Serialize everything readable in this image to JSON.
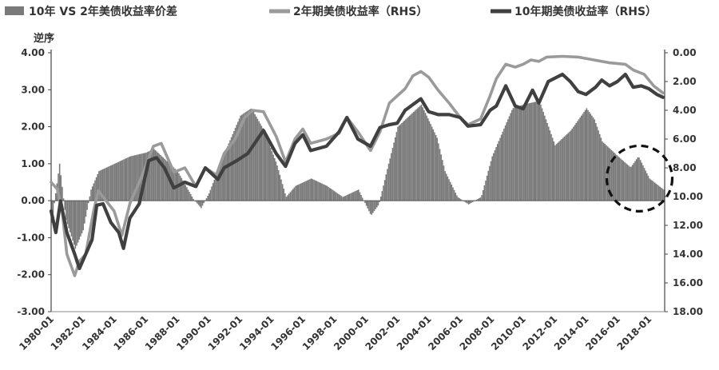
{
  "chart_data": {
    "type": "bar+line",
    "legend": [
      {
        "name": "10年 VS 2年美债收益率价差",
        "kind": "bar",
        "color": "#7a7a7a"
      },
      {
        "name": "2年期美债收益率（RHS）",
        "kind": "line",
        "color": "#9a9a9a"
      },
      {
        "name": "10年期美债收益率（RHS）",
        "kind": "line",
        "color": "#404040"
      }
    ],
    "left_axis": {
      "ylim": [
        -3,
        4
      ],
      "ticks": [
        "4.00",
        "3.00",
        "2.00",
        "1.00",
        "0.00",
        "-1.00",
        "-2.00",
        "-3.00"
      ]
    },
    "right_axis": {
      "label": "逆序",
      "reversed": true,
      "ylim": [
        0,
        18
      ],
      "ticks": [
        "0.00",
        "2.00",
        "4.00",
        "6.00",
        "8.00",
        "10.00",
        "12.00",
        "14.00",
        "16.00",
        "18.00"
      ]
    },
    "x_ticks": [
      "1980-01",
      "1982-01",
      "1984-01",
      "1986-01",
      "1988-01",
      "1990-01",
      "1992-01",
      "1994-01",
      "1996-01",
      "1998-01",
      "2000-01",
      "2002-01",
      "2004-01",
      "2006-01",
      "2008-01",
      "2010-01",
      "2012-01",
      "2014-01",
      "2016-01",
      "2018-01"
    ],
    "x_range": [
      "1980-01",
      "2018-12"
    ],
    "series": [
      {
        "name": "10年 VS 2年美债收益率价差",
        "type": "bar",
        "points": [
          [
            1980.0,
            -0.6
          ],
          [
            1980.5,
            1.0
          ],
          [
            1980.9,
            -0.5
          ],
          [
            1981.5,
            -1.3
          ],
          [
            1982.0,
            -0.8
          ],
          [
            1982.5,
            0.3
          ],
          [
            1983.0,
            0.8
          ],
          [
            1984.0,
            1.0
          ],
          [
            1985.0,
            1.2
          ],
          [
            1986.0,
            1.3
          ],
          [
            1986.5,
            1.4
          ],
          [
            1987.0,
            1.2
          ],
          [
            1988.0,
            0.8
          ],
          [
            1989.0,
            0.05
          ],
          [
            1989.5,
            -0.2
          ],
          [
            1990.0,
            0.2
          ],
          [
            1991.0,
            1.3
          ],
          [
            1992.0,
            2.3
          ],
          [
            1992.7,
            2.5
          ],
          [
            1993.5,
            1.9
          ],
          [
            1994.3,
            1.0
          ],
          [
            1994.9,
            0.1
          ],
          [
            1995.5,
            0.4
          ],
          [
            1996.5,
            0.6
          ],
          [
            1997.5,
            0.4
          ],
          [
            1998.5,
            0.1
          ],
          [
            1999.5,
            0.3
          ],
          [
            2000.3,
            -0.4
          ],
          [
            2000.8,
            -0.1
          ],
          [
            2001.3,
            0.8
          ],
          [
            2002.0,
            2.0
          ],
          [
            2003.0,
            2.4
          ],
          [
            2003.5,
            2.6
          ],
          [
            2004.5,
            1.7
          ],
          [
            2005.0,
            0.8
          ],
          [
            2005.8,
            0.1
          ],
          [
            2006.5,
            -0.1
          ],
          [
            2007.3,
            0.1
          ],
          [
            2008.0,
            1.2
          ],
          [
            2008.6,
            1.8
          ],
          [
            2009.3,
            2.5
          ],
          [
            2010.0,
            2.6
          ],
          [
            2011.0,
            2.7
          ],
          [
            2012.0,
            1.5
          ],
          [
            2013.0,
            1.9
          ],
          [
            2014.0,
            2.5
          ],
          [
            2014.5,
            2.2
          ],
          [
            2015.0,
            1.6
          ],
          [
            2016.0,
            1.2
          ],
          [
            2016.8,
            0.9
          ],
          [
            2017.3,
            1.2
          ],
          [
            2018.0,
            0.6
          ],
          [
            2018.9,
            0.3
          ]
        ]
      },
      {
        "name": "2年期美债收益率（RHS）",
        "type": "line",
        "points": [
          [
            1980.0,
            9.0
          ],
          [
            1980.4,
            9.5
          ],
          [
            1980.7,
            11.0
          ],
          [
            1981.0,
            14.0
          ],
          [
            1981.5,
            15.5
          ],
          [
            1981.8,
            14.5
          ],
          [
            1982.2,
            14.0
          ],
          [
            1982.7,
            11.0
          ],
          [
            1983.0,
            9.6
          ],
          [
            1983.5,
            10.3
          ],
          [
            1984.0,
            11.0
          ],
          [
            1984.5,
            12.7
          ],
          [
            1985.0,
            10.5
          ],
          [
            1985.8,
            8.5
          ],
          [
            1986.5,
            6.5
          ],
          [
            1987.0,
            6.3
          ],
          [
            1987.8,
            8.3
          ],
          [
            1988.5,
            8.0
          ],
          [
            1989.2,
            9.3
          ],
          [
            1989.8,
            8.0
          ],
          [
            1990.5,
            8.5
          ],
          [
            1991.0,
            7.0
          ],
          [
            1991.7,
            6.0
          ],
          [
            1992.3,
            4.5
          ],
          [
            1992.8,
            4.0
          ],
          [
            1993.5,
            4.1
          ],
          [
            1994.3,
            5.8
          ],
          [
            1994.9,
            7.6
          ],
          [
            1995.5,
            6.0
          ],
          [
            1996.0,
            5.3
          ],
          [
            1996.5,
            6.3
          ],
          [
            1997.5,
            6.0
          ],
          [
            1998.3,
            5.6
          ],
          [
            1998.8,
            4.5
          ],
          [
            1999.5,
            5.5
          ],
          [
            2000.3,
            6.8
          ],
          [
            2000.9,
            5.5
          ],
          [
            2001.5,
            3.5
          ],
          [
            2002.0,
            3.0
          ],
          [
            2002.5,
            2.5
          ],
          [
            2003.0,
            1.6
          ],
          [
            2003.5,
            1.3
          ],
          [
            2004.0,
            1.7
          ],
          [
            2004.6,
            2.6
          ],
          [
            2005.3,
            3.5
          ],
          [
            2006.0,
            4.5
          ],
          [
            2006.5,
            5.0
          ],
          [
            2007.3,
            4.6
          ],
          [
            2007.9,
            3.0
          ],
          [
            2008.3,
            1.8
          ],
          [
            2008.9,
            0.8
          ],
          [
            2009.5,
            1.0
          ],
          [
            2010.0,
            0.8
          ],
          [
            2010.5,
            0.5
          ],
          [
            2011.0,
            0.6
          ],
          [
            2011.5,
            0.3
          ],
          [
            2012.5,
            0.25
          ],
          [
            2013.5,
            0.3
          ],
          [
            2014.5,
            0.5
          ],
          [
            2015.5,
            0.7
          ],
          [
            2016.5,
            0.8
          ],
          [
            2017.0,
            1.2
          ],
          [
            2017.7,
            1.5
          ],
          [
            2018.3,
            2.3
          ],
          [
            2018.9,
            2.8
          ]
        ]
      },
      {
        "name": "10年期美债收益率（RHS）",
        "type": "line",
        "points": [
          [
            1980.0,
            11.0
          ],
          [
            1980.3,
            12.5
          ],
          [
            1980.6,
            10.3
          ],
          [
            1981.0,
            12.5
          ],
          [
            1981.5,
            14.0
          ],
          [
            1981.8,
            15.0
          ],
          [
            1982.2,
            14.0
          ],
          [
            1982.6,
            13.0
          ],
          [
            1982.9,
            10.6
          ],
          [
            1983.3,
            10.5
          ],
          [
            1983.8,
            11.8
          ],
          [
            1984.3,
            12.5
          ],
          [
            1984.6,
            13.6
          ],
          [
            1985.0,
            11.5
          ],
          [
            1985.6,
            10.5
          ],
          [
            1986.2,
            7.5
          ],
          [
            1986.7,
            7.3
          ],
          [
            1987.2,
            8.0
          ],
          [
            1987.8,
            9.4
          ],
          [
            1988.5,
            9.0
          ],
          [
            1989.2,
            9.3
          ],
          [
            1989.8,
            8.0
          ],
          [
            1990.6,
            8.8
          ],
          [
            1991.0,
            8.0
          ],
          [
            1991.8,
            7.5
          ],
          [
            1992.5,
            7.0
          ],
          [
            1993.5,
            5.4
          ],
          [
            1994.3,
            7.0
          ],
          [
            1994.9,
            7.9
          ],
          [
            1995.5,
            6.3
          ],
          [
            1996.0,
            5.7
          ],
          [
            1996.5,
            6.8
          ],
          [
            1997.5,
            6.5
          ],
          [
            1998.3,
            5.5
          ],
          [
            1998.8,
            4.5
          ],
          [
            1999.5,
            6.0
          ],
          [
            2000.3,
            6.5
          ],
          [
            2000.9,
            5.2
          ],
          [
            2001.5,
            5.0
          ],
          [
            2002.0,
            4.9
          ],
          [
            2002.5,
            4.0
          ],
          [
            2003.0,
            3.6
          ],
          [
            2003.5,
            3.2
          ],
          [
            2004.0,
            4.1
          ],
          [
            2004.6,
            4.3
          ],
          [
            2005.3,
            4.3
          ],
          [
            2006.0,
            4.5
          ],
          [
            2006.5,
            5.1
          ],
          [
            2007.3,
            5.0
          ],
          [
            2007.9,
            4.0
          ],
          [
            2008.3,
            3.7
          ],
          [
            2008.9,
            2.3
          ],
          [
            2009.5,
            3.7
          ],
          [
            2010.0,
            3.9
          ],
          [
            2010.6,
            2.6
          ],
          [
            2011.0,
            3.5
          ],
          [
            2011.6,
            2.0
          ],
          [
            2012.5,
            1.5
          ],
          [
            2013.0,
            2.0
          ],
          [
            2013.5,
            2.7
          ],
          [
            2014.0,
            2.9
          ],
          [
            2014.6,
            2.4
          ],
          [
            2015.0,
            1.9
          ],
          [
            2015.5,
            2.3
          ],
          [
            2016.0,
            2.0
          ],
          [
            2016.5,
            1.5
          ],
          [
            2017.0,
            2.4
          ],
          [
            2017.5,
            2.3
          ],
          [
            2018.0,
            2.5
          ],
          [
            2018.5,
            2.9
          ],
          [
            2018.9,
            3.1
          ]
        ]
      }
    ],
    "annotation": {
      "type": "dashed-circle",
      "center": [
        2017.4,
        0.6
      ]
    }
  }
}
